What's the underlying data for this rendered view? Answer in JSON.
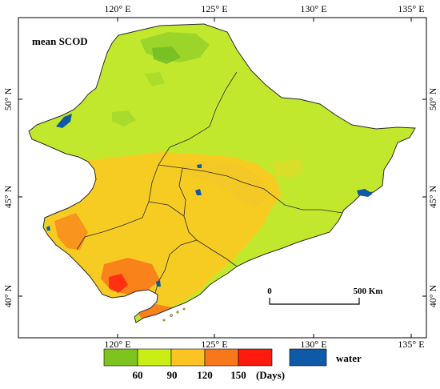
{
  "map_title": "mean SCOD",
  "lon_ticks": [
    "120° E",
    "125° E",
    "130° E",
    "135° E"
  ],
  "lat_ticks": [
    "50° N",
    "45° N",
    "40° N"
  ],
  "scale_bar": {
    "start_label": "0",
    "end_label": "500 Km"
  },
  "legend": {
    "classes": [
      {
        "color": "#7dc41e"
      },
      {
        "color": "#c9ee16"
      },
      {
        "color": "#fbc422"
      },
      {
        "color": "#f8771b"
      },
      {
        "color": "#ff1a10"
      }
    ],
    "break_labels": [
      "60",
      "90",
      "120",
      "150"
    ],
    "unit": "(Days)",
    "water_color": "#0f5aa8",
    "water_label": "water"
  },
  "colors": {
    "base_land": "#c2e82e",
    "water": "#0f5aa8",
    "border": "#2a2a2a"
  }
}
